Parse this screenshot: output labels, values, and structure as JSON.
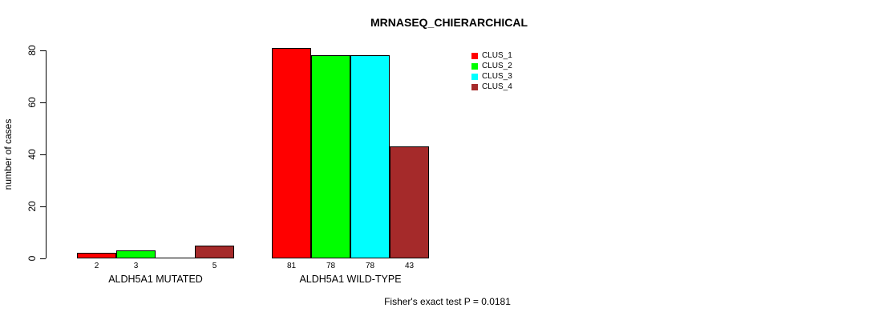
{
  "title": "MRNASEQ_CHIERARCHICAL",
  "annotation": "Fisher's exact test P = 0.0181",
  "chart_data": {
    "type": "bar",
    "title": "MRNASEQ_CHIERARCHICAL",
    "ylabel": "number of cases",
    "xlabel": "",
    "categories": [
      "ALDH5A1 MUTATED",
      "ALDH5A1 WILD-TYPE"
    ],
    "series": [
      {
        "name": "CLUS_1",
        "color": "#ff0000",
        "values": [
          2,
          81
        ]
      },
      {
        "name": "CLUS_2",
        "color": "#00ff00",
        "values": [
          3,
          78
        ]
      },
      {
        "name": "CLUS_3",
        "color": "#00ffff",
        "values": [
          0,
          78
        ]
      },
      {
        "name": "CLUS_4",
        "color": "#a52a2a",
        "values": [
          5,
          43
        ]
      }
    ],
    "yticks": [
      0,
      20,
      40,
      60,
      80
    ],
    "ylim": [
      0,
      80
    ],
    "grid": false,
    "bar_borders": "#000000",
    "value_labels_shown_under_bars": true,
    "zero_values_have_no_label": true,
    "legend_position": "top-right",
    "legend_entries": [
      "CLUS_1",
      "CLUS_2",
      "CLUS_3",
      "CLUS_4"
    ],
    "annotation": "Fisher's exact test P = 0.0181"
  }
}
